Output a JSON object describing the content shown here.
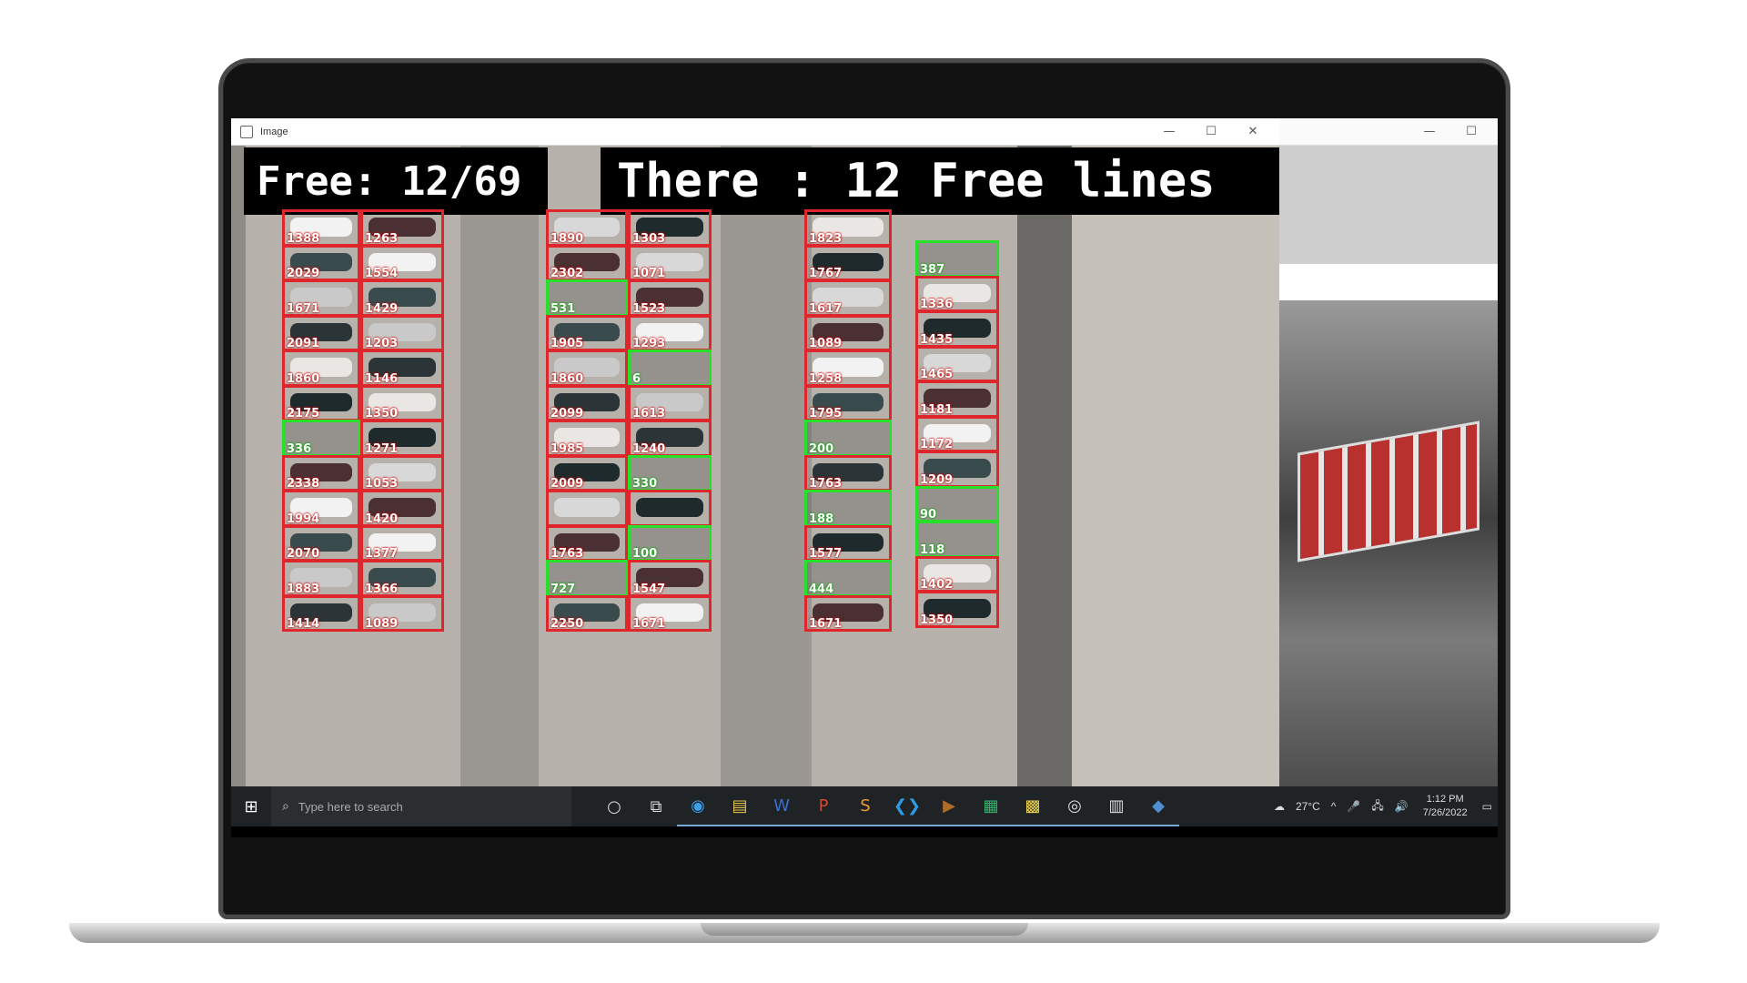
{
  "window": {
    "title": "Image",
    "controls": [
      "—",
      "☐",
      "✕"
    ]
  },
  "overlay": {
    "free_count": "Free: 12/69",
    "free_lines": "There : 12 Free lines"
  },
  "columns": [
    {
      "slots": [
        {
          "id": "1388",
          "state": "occupied"
        },
        {
          "id": "2029",
          "state": "occupied"
        },
        {
          "id": "1671",
          "state": "occupied"
        },
        {
          "id": "2091",
          "state": "occupied"
        },
        {
          "id": "1860",
          "state": "occupied"
        },
        {
          "id": "2175",
          "state": "occupied"
        },
        {
          "id": "336",
          "state": "free"
        },
        {
          "id": "2338",
          "state": "occupied"
        },
        {
          "id": "1994",
          "state": "occupied"
        },
        {
          "id": "2070",
          "state": "occupied"
        },
        {
          "id": "1883",
          "state": "occupied"
        },
        {
          "id": "1414",
          "state": "occupied"
        }
      ]
    },
    {
      "slots": [
        {
          "id": "1263",
          "state": "occupied"
        },
        {
          "id": "1554",
          "state": "occupied"
        },
        {
          "id": "1429",
          "state": "occupied"
        },
        {
          "id": "1203",
          "state": "occupied"
        },
        {
          "id": "1146",
          "state": "occupied"
        },
        {
          "id": "1350",
          "state": "occupied"
        },
        {
          "id": "1271",
          "state": "occupied"
        },
        {
          "id": "1053",
          "state": "occupied"
        },
        {
          "id": "1420",
          "state": "occupied"
        },
        {
          "id": "1377",
          "state": "occupied"
        },
        {
          "id": "1366",
          "state": "occupied"
        },
        {
          "id": "1089",
          "state": "occupied"
        }
      ]
    },
    {
      "slots": [
        {
          "id": "1890",
          "state": "occupied"
        },
        {
          "id": "2302",
          "state": "occupied"
        },
        {
          "id": "531",
          "state": "free"
        },
        {
          "id": "1905",
          "state": "occupied"
        },
        {
          "id": "1860",
          "state": "occupied"
        },
        {
          "id": "2099",
          "state": "occupied"
        },
        {
          "id": "1985",
          "state": "occupied"
        },
        {
          "id": "2009",
          "state": "occupied"
        },
        {
          "id": "",
          "state": "occupied"
        },
        {
          "id": "1763",
          "state": "occupied"
        },
        {
          "id": "727",
          "state": "free"
        },
        {
          "id": "2250",
          "state": "occupied"
        }
      ]
    },
    {
      "slots": [
        {
          "id": "1303",
          "state": "occupied"
        },
        {
          "id": "1071",
          "state": "occupied"
        },
        {
          "id": "1523",
          "state": "occupied"
        },
        {
          "id": "1293",
          "state": "occupied"
        },
        {
          "id": "6",
          "state": "free"
        },
        {
          "id": "1613",
          "state": "occupied"
        },
        {
          "id": "1240",
          "state": "occupied"
        },
        {
          "id": "330",
          "state": "free"
        },
        {
          "id": "",
          "state": "occupied"
        },
        {
          "id": "100",
          "state": "free"
        },
        {
          "id": "1547",
          "state": "occupied"
        },
        {
          "id": "1671",
          "state": "occupied"
        }
      ]
    },
    {
      "slots": [
        {
          "id": "1823",
          "state": "occupied"
        },
        {
          "id": "1767",
          "state": "occupied"
        },
        {
          "id": "1617",
          "state": "occupied"
        },
        {
          "id": "1089",
          "state": "occupied"
        },
        {
          "id": "1258",
          "state": "occupied"
        },
        {
          "id": "1795",
          "state": "occupied"
        },
        {
          "id": "200",
          "state": "free"
        },
        {
          "id": "1763",
          "state": "occupied"
        },
        {
          "id": "188",
          "state": "free"
        },
        {
          "id": "1577",
          "state": "occupied"
        },
        {
          "id": "444",
          "state": "free"
        },
        {
          "id": "1671",
          "state": "occupied"
        }
      ]
    },
    {
      "slots": [
        {
          "id": "387",
          "state": "free"
        },
        {
          "id": "1336",
          "state": "occupied"
        },
        {
          "id": "1435",
          "state": "occupied"
        },
        {
          "id": "1465",
          "state": "occupied"
        },
        {
          "id": "1181",
          "state": "occupied"
        },
        {
          "id": "1172",
          "state": "occupied"
        },
        {
          "id": "1209",
          "state": "occupied"
        },
        {
          "id": "90",
          "state": "free"
        },
        {
          "id": "118",
          "state": "free"
        },
        {
          "id": "1402",
          "state": "occupied"
        },
        {
          "id": "1350",
          "state": "occupied"
        }
      ]
    }
  ],
  "colors": {
    "occupied": "#e0262d",
    "free": "#27e02a"
  },
  "car_palette": [
    "#f2f2f2",
    "#2b3436",
    "#d8d8d8",
    "#3a4b4d",
    "#e9e6e3",
    "#4a2f33",
    "#c9c9c9",
    "#1f2a2c"
  ],
  "taskbar": {
    "search_placeholder": "Type here to search",
    "icons": [
      "cortana-icon",
      "task-view-icon",
      "edge-icon",
      "file-explorer-icon",
      "word-icon",
      "powerpoint-icon",
      "sublime-icon",
      "vscode-icon",
      "terminal-icon",
      "notepad-icon",
      "sticky-notes-icon",
      "github-icon",
      "files-icon",
      "python-icon"
    ],
    "temperature": "27°C",
    "time": "1:12 PM",
    "date": "7/26/2022"
  }
}
